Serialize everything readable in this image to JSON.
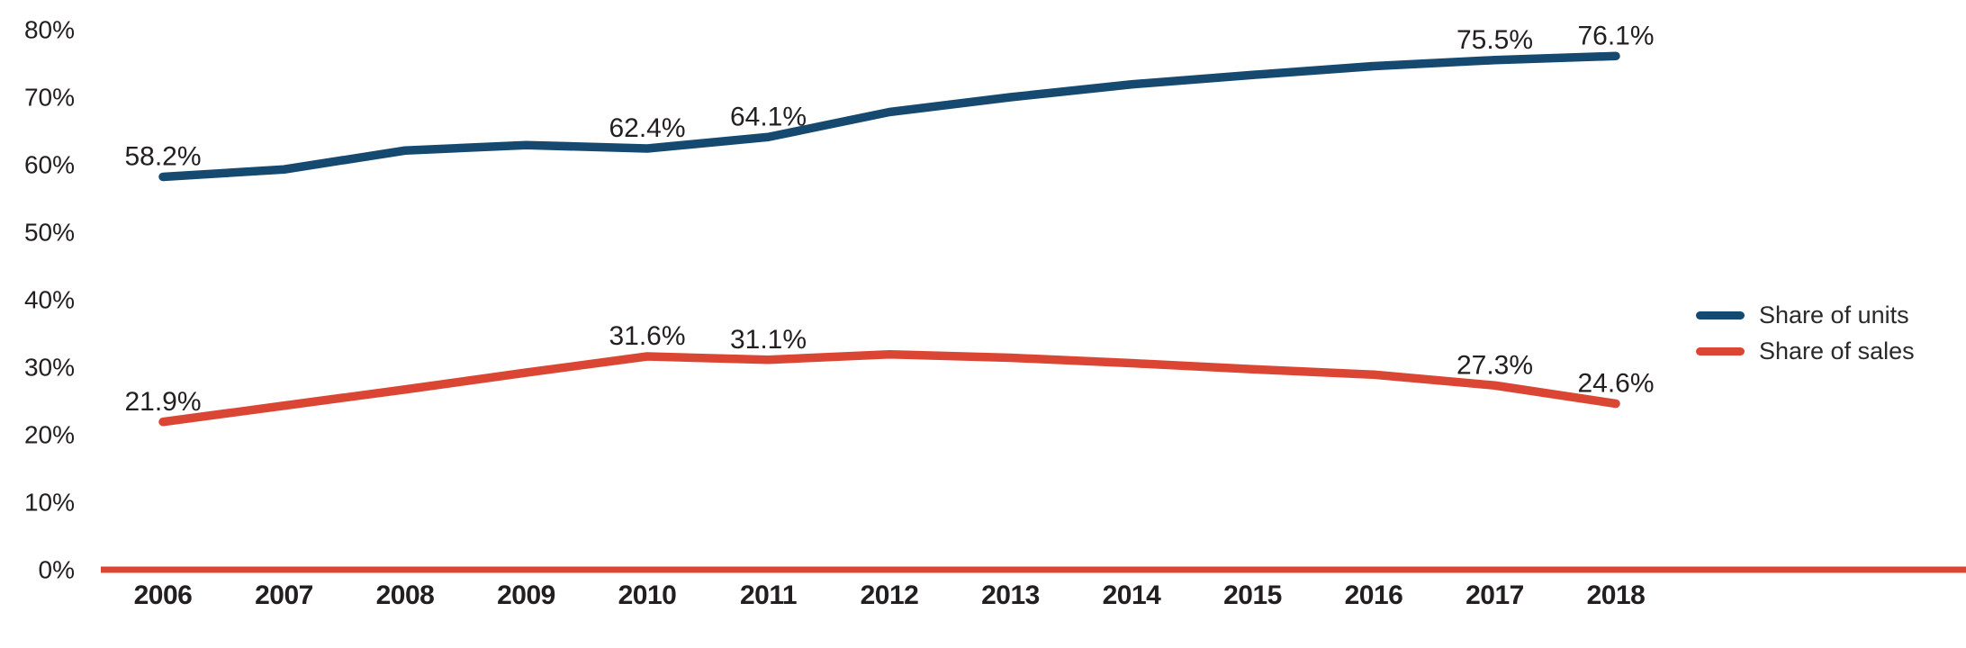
{
  "chart_data": {
    "type": "line",
    "title": "",
    "xlabel": "",
    "ylabel": "",
    "categories": [
      "2006",
      "2007",
      "2008",
      "2009",
      "2010",
      "2011",
      "2012",
      "2013",
      "2014",
      "2015",
      "2016",
      "2017",
      "2018"
    ],
    "series": [
      {
        "name": "Share of units",
        "color": "#15496F",
        "values": [
          58.2,
          59.3,
          62.1,
          62.9,
          62.4,
          64.1,
          67.8,
          70.0,
          71.9,
          73.3,
          74.6,
          75.5,
          76.1
        ],
        "point_labels": {
          "2006": "58.2%",
          "2010": "62.4%",
          "2011": "64.1%",
          "2017": "75.5%",
          "2018": "76.1%"
        }
      },
      {
        "name": "Share of sales",
        "color": "#DB4534",
        "values": [
          21.9,
          24.3,
          26.7,
          29.2,
          31.6,
          31.1,
          31.9,
          31.4,
          30.6,
          29.7,
          28.9,
          27.3,
          24.6
        ],
        "point_labels": {
          "2006": "21.9%",
          "2010": "31.6%",
          "2011": "31.1%",
          "2017": "27.3%",
          "2018": "24.6%"
        }
      }
    ],
    "y_ticks": [
      {
        "label": "0%",
        "value": 0
      },
      {
        "label": "10%",
        "value": 10
      },
      {
        "label": "20%",
        "value": 20
      },
      {
        "label": "30%",
        "value": 30
      },
      {
        "label": "40%",
        "value": 40
      },
      {
        "label": "50%",
        "value": 50
      },
      {
        "label": "60%",
        "value": 60
      },
      {
        "label": "70%",
        "value": 70
      },
      {
        "label": "80%",
        "value": 80
      }
    ],
    "ylim": [
      0,
      80
    ],
    "grid": false,
    "legend_position": "right-middle",
    "x_axis_color": "#DB4534",
    "text_color": "#231F20"
  }
}
